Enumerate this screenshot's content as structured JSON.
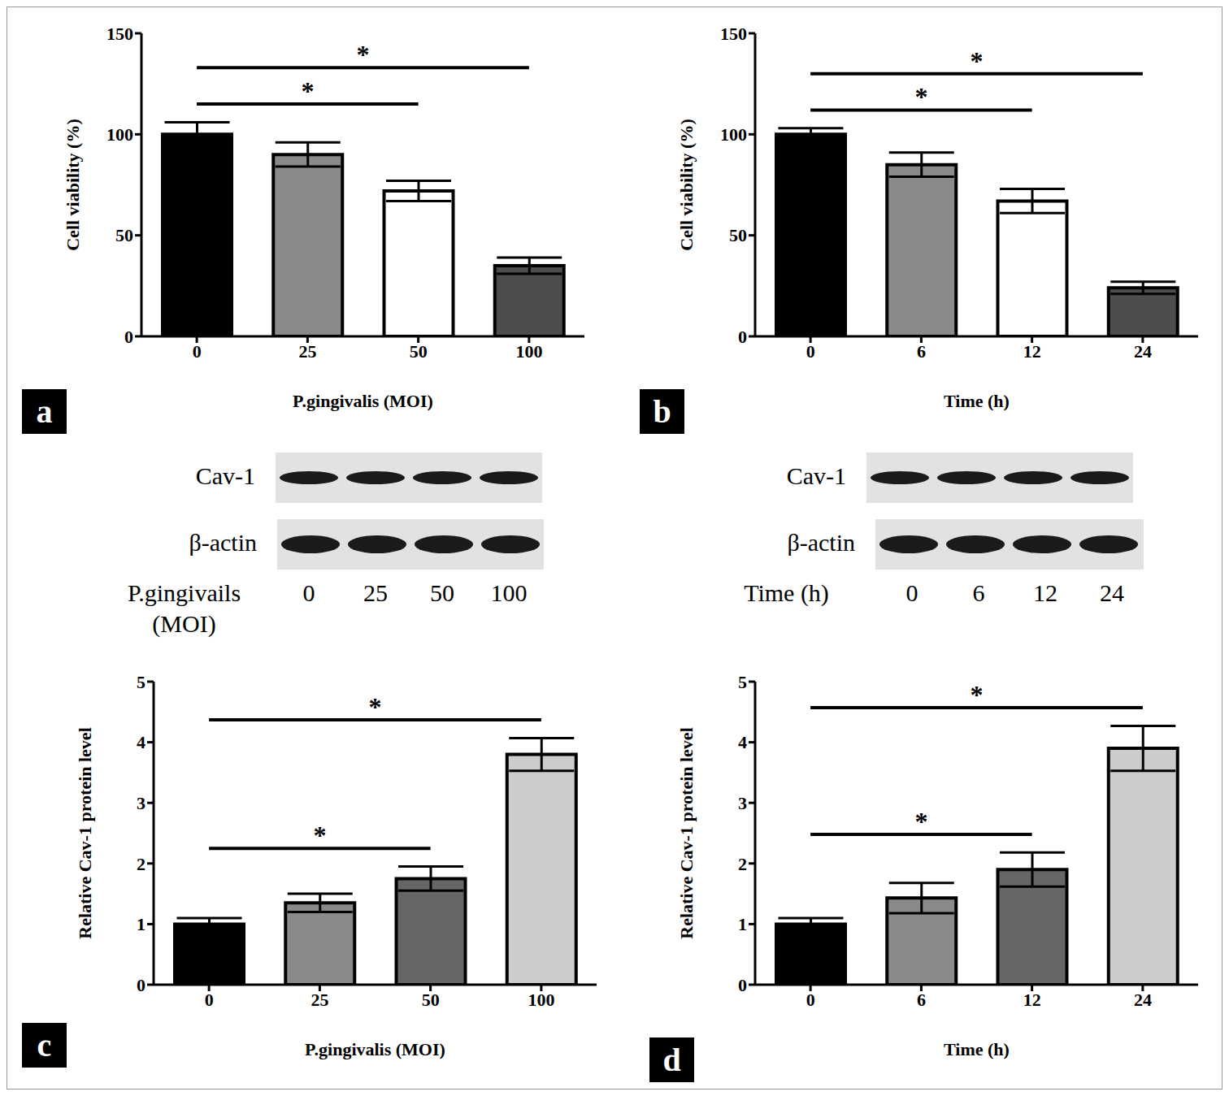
{
  "chart_data": [
    {
      "type": "bar",
      "panel": "a",
      "x_label": "P.gingivalis (MOI)",
      "y_label": "Cell viability (%)",
      "categories": [
        "0",
        "25",
        "50",
        "100"
      ],
      "values": [
        100,
        90,
        72,
        35
      ],
      "errors": [
        6,
        6,
        5,
        4
      ],
      "colors": [
        "#000000",
        "#8a8a8a",
        "#ffffff",
        "#4d4d4d"
      ],
      "ylim": [
        0,
        150
      ],
      "yticks": [
        0,
        50,
        100,
        150
      ],
      "annotations": [
        {
          "from": "0",
          "to": "50",
          "label": "*"
        },
        {
          "from": "0",
          "to": "100",
          "label": "*"
        }
      ]
    },
    {
      "type": "bar",
      "panel": "b",
      "x_label": "Time (h)",
      "y_label": "Cell viability (%)",
      "categories": [
        "0",
        "6",
        "12",
        "24"
      ],
      "values": [
        100,
        85,
        67,
        24
      ],
      "errors": [
        3,
        6,
        6,
        3
      ],
      "colors": [
        "#000000",
        "#8a8a8a",
        "#ffffff",
        "#4d4d4d"
      ],
      "ylim": [
        0,
        150
      ],
      "yticks": [
        0,
        50,
        100,
        150
      ],
      "annotations": [
        {
          "from": "0",
          "to": "12",
          "label": "*"
        },
        {
          "from": "0",
          "to": "24",
          "label": "*"
        }
      ]
    },
    {
      "type": "bar",
      "panel": "c",
      "x_label": "P.gingivalis (MOI)",
      "y_label": "Relative Cav-1 protein level",
      "categories": [
        "0",
        "25",
        "50",
        "100"
      ],
      "values": [
        1,
        1.35,
        1.75,
        3.8
      ],
      "errors": [
        0.1,
        0.15,
        0.2,
        0.27
      ],
      "colors": [
        "#000000",
        "#8a8a8a",
        "#666666",
        "#cccccc"
      ],
      "ylim": [
        0,
        5
      ],
      "yticks": [
        0,
        1,
        2,
        3,
        4,
        5
      ],
      "annotations": [
        {
          "from": "0",
          "to": "50",
          "label": "*"
        },
        {
          "from": "0",
          "to": "100",
          "label": "*"
        }
      ]
    },
    {
      "type": "bar",
      "panel": "d",
      "x_label": "Time (h)",
      "y_label": "Relative Cav-1 protein level",
      "categories": [
        "0",
        "6",
        "12",
        "24"
      ],
      "values": [
        1,
        1.43,
        1.9,
        3.9
      ],
      "errors": [
        0.1,
        0.25,
        0.28,
        0.37
      ],
      "colors": [
        "#000000",
        "#8a8a8a",
        "#666666",
        "#cccccc"
      ],
      "ylim": [
        0,
        5
      ],
      "yticks": [
        0,
        1,
        2,
        3,
        4,
        5
      ],
      "annotations": [
        {
          "from": "0",
          "to": "12",
          "label": "*"
        },
        {
          "from": "0",
          "to": "24",
          "label": "*"
        }
      ]
    }
  ],
  "blots": [
    {
      "rows": [
        "Cav-1",
        "β-actin"
      ],
      "x_label": [
        "P.gingivails",
        "(MOI)"
      ],
      "lanes": [
        "0",
        "25",
        "50",
        "100"
      ]
    },
    {
      "rows": [
        "Cav-1",
        "β-actin"
      ],
      "x_label": [
        "Time  (h)"
      ],
      "lanes": [
        "0",
        "6",
        "12",
        "24"
      ]
    }
  ]
}
